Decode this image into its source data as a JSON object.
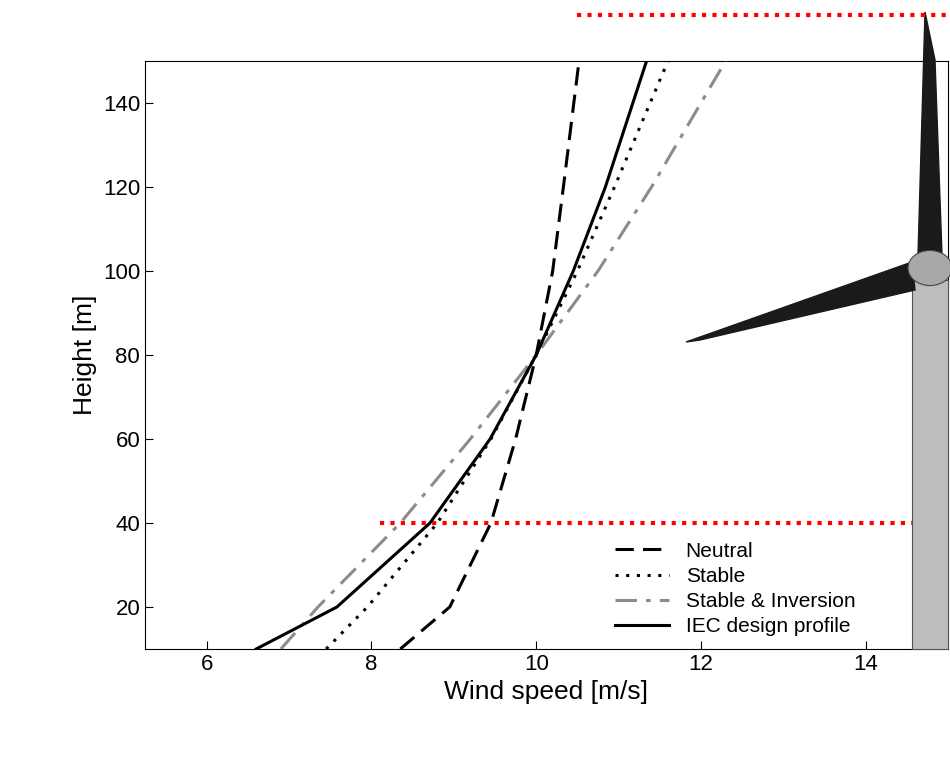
{
  "chart_data": {
    "type": "line",
    "x_label": "Wind speed [m/s]",
    "y_label": "Height [m]",
    "xlim": [
      5.25,
      15
    ],
    "xticks": [
      6,
      8,
      10,
      12,
      14
    ],
    "ylim": [
      10,
      150
    ],
    "yticks": [
      20,
      40,
      60,
      80,
      100,
      120,
      140
    ],
    "grid": false,
    "legend": "lower right",
    "orientation": "horizontal",
    "reference_height": 40,
    "heights": [
      10,
      20,
      40,
      60,
      80,
      100,
      120,
      150
    ],
    "series": [
      {
        "name": "Neutral",
        "color": "#000000",
        "line_style": "dashed",
        "values": [
          8.35,
          8.95,
          9.45,
          9.75,
          10.0,
          10.2,
          10.33,
          10.52
        ]
      },
      {
        "name": "Stable",
        "color": "#000000",
        "line_style": "dotted",
        "values": [
          7.45,
          7.95,
          8.8,
          9.45,
          10.0,
          10.5,
          10.95,
          11.6
        ]
      },
      {
        "name": "Stable & Inversion",
        "color": "#8c8c8c",
        "line_style": "dashdot",
        "values": [
          6.9,
          7.35,
          8.35,
          9.2,
          10.0,
          10.75,
          11.4,
          12.3
        ]
      },
      {
        "name": "IEC design profile",
        "color": "#000000",
        "line_style": "solid",
        "values": [
          6.6,
          7.58,
          8.71,
          9.44,
          10.0,
          10.45,
          10.84,
          11.34
        ]
      }
    ]
  }
}
